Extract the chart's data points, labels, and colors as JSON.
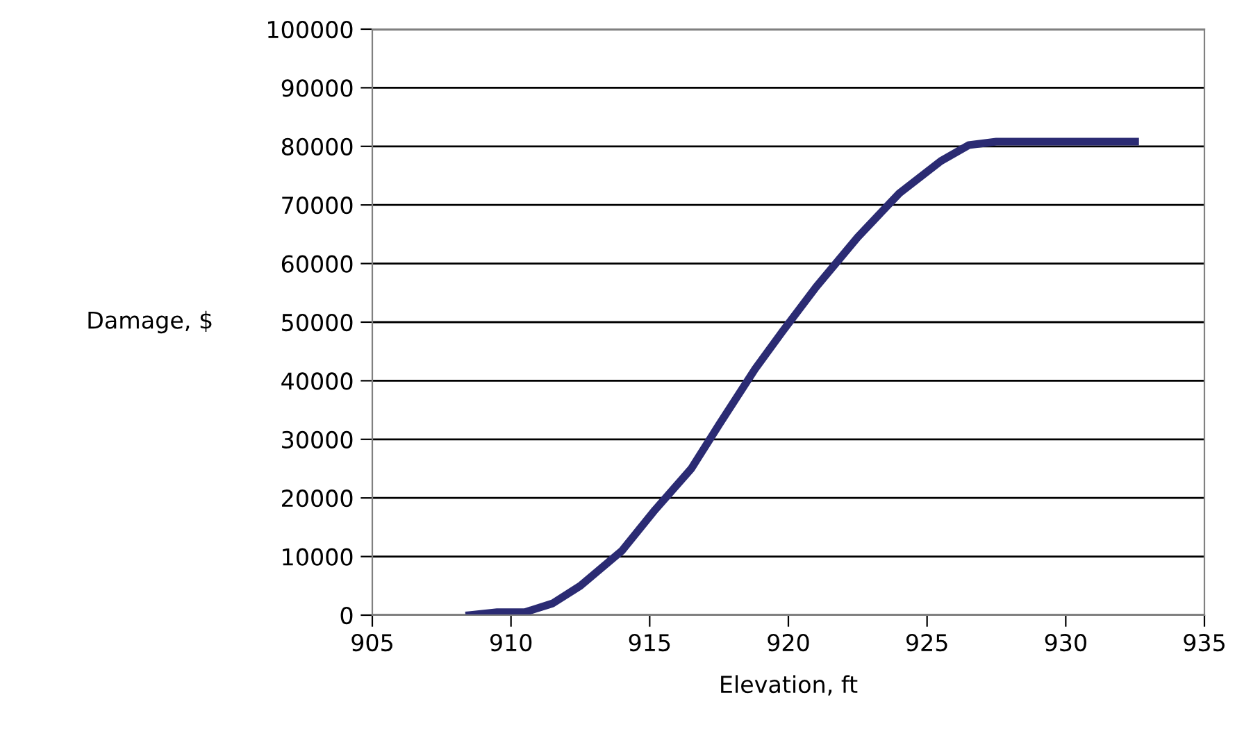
{
  "chart_data": {
    "type": "line",
    "xlabel": "Elevation, ft",
    "ylabel": "Damage, $",
    "x": [
      908.5,
      909.5,
      910.5,
      911.5,
      912.5,
      914,
      915.2,
      916.5,
      917.5,
      918.8,
      919.8,
      921,
      922.5,
      923.5,
      924,
      925.5,
      926.5,
      927.5,
      932.5
    ],
    "series": [
      {
        "color": "#2b2b73",
        "values": [
          0,
          500,
          500,
          2000,
          5000,
          11000,
          18000,
          25000,
          32500,
          42000,
          48500,
          56000,
          64500,
          69500,
          72000,
          77500,
          80200,
          80800,
          80800
        ]
      }
    ],
    "xlim": [
      905,
      935
    ],
    "xticks": [
      905,
      910,
      915,
      920,
      925,
      930,
      935
    ],
    "ylim": [
      0,
      100000
    ],
    "yticks": [
      0,
      10000,
      20000,
      30000,
      40000,
      50000,
      60000,
      70000,
      80000,
      90000,
      100000
    ],
    "grid": "y",
    "marker": "none",
    "line_style": "solid",
    "legend": false
  }
}
